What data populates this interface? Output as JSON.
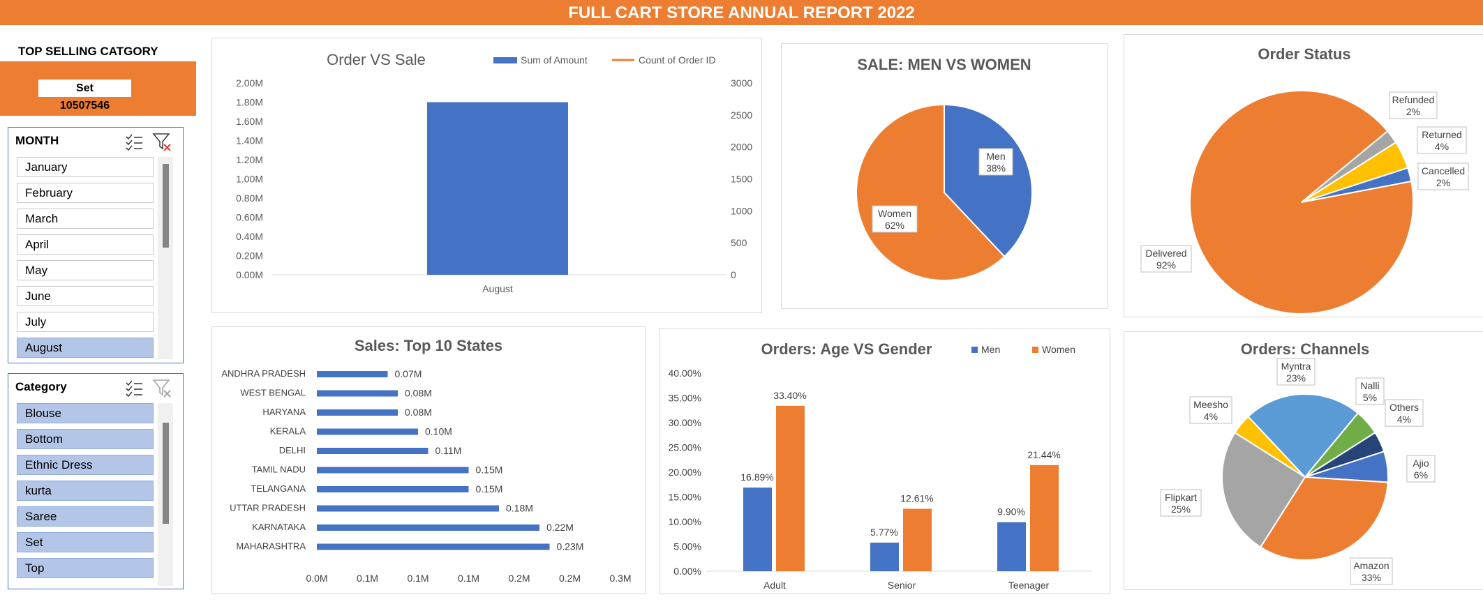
{
  "header": {
    "title": "FULL CART STORE ANNUAL REPORT 2022"
  },
  "top_selling": {
    "title": "TOP SELLING CATGORY",
    "category": "Set",
    "value": "10507546"
  },
  "month_slicer": {
    "title": "MONTH",
    "items": [
      "January",
      "February",
      "March",
      "April",
      "May",
      "June",
      "July",
      "August"
    ],
    "selected": "August"
  },
  "category_slicer": {
    "title": "Category",
    "items": [
      "Blouse",
      "Bottom",
      "Ethnic Dress",
      "kurta",
      "Saree",
      "Set",
      "Top"
    ]
  },
  "colors": {
    "blue": "#4472C4",
    "orange": "#ED7D31",
    "gray": "#A5A5A5",
    "yellow": "#FFC000",
    "lightblue": "#5B9BD5",
    "green": "#70AD47",
    "navy": "#264478"
  },
  "chart_data": [
    {
      "id": "order_vs_sale",
      "type": "bar",
      "title": "Order VS Sale",
      "categories": [
        "August"
      ],
      "series": [
        {
          "name": "Sum of Amount",
          "values": [
            1800000
          ],
          "axis": "left",
          "type": "bar"
        },
        {
          "name": "Count of Order ID",
          "values": [
            null
          ],
          "axis": "right",
          "type": "line"
        }
      ],
      "y_left_ticks": [
        "0.00M",
        "0.20M",
        "0.40M",
        "0.60M",
        "0.80M",
        "1.00M",
        "1.20M",
        "1.40M",
        "1.60M",
        "1.80M",
        "2.00M"
      ],
      "ylim_left": [
        0,
        2000000
      ],
      "y_right_ticks": [
        "0",
        "500",
        "1000",
        "1500",
        "2000",
        "2500",
        "3000"
      ],
      "ylim_right": [
        0,
        3000
      ],
      "legend": "top-right"
    },
    {
      "id": "men_vs_women",
      "type": "pie",
      "title": "SALE: MEN VS WOMEN",
      "slices": [
        {
          "label": "Men",
          "value": 38,
          "pct": "38%"
        },
        {
          "label": "Women",
          "value": 62,
          "pct": "62%"
        }
      ]
    },
    {
      "id": "order_status",
      "type": "pie",
      "title": "Order Status",
      "slices": [
        {
          "label": "Cancelled",
          "value": 2,
          "pct": "2%"
        },
        {
          "label": "Delivered",
          "value": 92,
          "pct": "92%"
        },
        {
          "label": "Refunded",
          "value": 2,
          "pct": "2%"
        },
        {
          "label": "Returned",
          "value": 4,
          "pct": "4%"
        }
      ]
    },
    {
      "id": "top_states",
      "type": "bar",
      "orientation": "horizontal",
      "title": "Sales: Top 10 States",
      "categories": [
        "ANDHRA PRADESH",
        "WEST BENGAL",
        "HARYANA",
        "KERALA",
        "DELHI",
        "TAMIL NADU",
        "TELANGANA",
        "UTTAR PRADESH",
        "KARNATAKA",
        "MAHARASHTRA"
      ],
      "values": [
        0.07,
        0.08,
        0.08,
        0.1,
        0.11,
        0.15,
        0.15,
        0.18,
        0.22,
        0.23
      ],
      "value_labels": [
        "0.07M",
        "0.08M",
        "0.08M",
        "0.10M",
        "0.11M",
        "0.15M",
        "0.15M",
        "0.18M",
        "0.22M",
        "0.23M"
      ],
      "x_ticks": [
        "0.0M",
        "0.1M",
        "0.1M",
        "0.1M",
        "0.2M",
        "0.2M",
        "0.3M"
      ],
      "xlim": [
        0,
        0.3
      ]
    },
    {
      "id": "age_vs_gender",
      "type": "bar",
      "title": "Orders: Age VS Gender",
      "categories": [
        "Adult",
        "Senior",
        "Teenager"
      ],
      "series": [
        {
          "name": "Men",
          "values": [
            16.89,
            5.77,
            9.9
          ],
          "labels": [
            "16.89%",
            "5.77%",
            "9.90%"
          ]
        },
        {
          "name": "Women",
          "values": [
            33.4,
            12.61,
            21.44
          ],
          "labels": [
            "33.40%",
            "12.61%",
            "21.44%"
          ]
        }
      ],
      "y_ticks": [
        "0.00%",
        "5.00%",
        "10.00%",
        "15.00%",
        "20.00%",
        "25.00%",
        "30.00%",
        "35.00%",
        "40.00%"
      ],
      "ylim": [
        0,
        40
      ],
      "legend": "top-right"
    },
    {
      "id": "channels",
      "type": "pie",
      "title": "Orders: Channels",
      "slices": [
        {
          "label": "Ajio",
          "value": 6,
          "pct": "6%"
        },
        {
          "label": "Amazon",
          "value": 33,
          "pct": "33%"
        },
        {
          "label": "Flipkart",
          "value": 25,
          "pct": "25%"
        },
        {
          "label": "Meesho",
          "value": 4,
          "pct": "4%"
        },
        {
          "label": "Myntra",
          "value": 23,
          "pct": "23%"
        },
        {
          "label": "Nalli",
          "value": 5,
          "pct": "5%"
        },
        {
          "label": "Others",
          "value": 4,
          "pct": "4%"
        }
      ]
    }
  ]
}
